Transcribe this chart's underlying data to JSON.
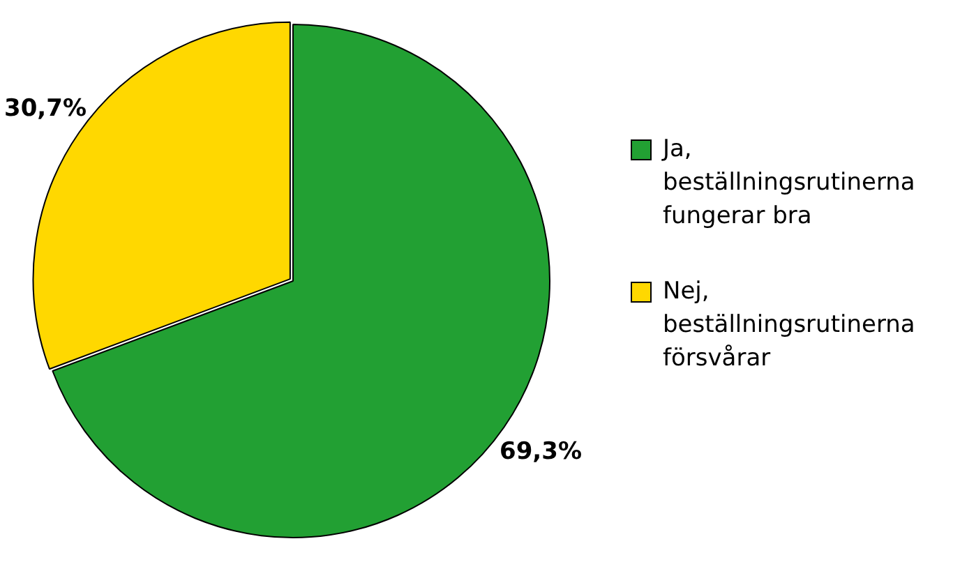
{
  "chart_data": {
    "type": "pie",
    "categories": [
      "Ja, beställningsrutinerna fungerar bra",
      "Nej, beställningsrutinerna försvårar"
    ],
    "values": [
      69.3,
      30.7
    ],
    "colors": [
      "#22a033",
      "#ffd800"
    ],
    "value_labels": [
      "69,3%",
      "30,7%"
    ],
    "legend": "right"
  }
}
